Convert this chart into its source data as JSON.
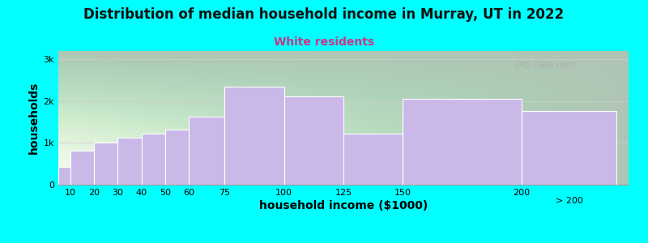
{
  "title": "Distribution of median household income in Murray, UT in 2022",
  "subtitle": "White residents",
  "xlabel": "household income ($1000)",
  "ylabel": "households",
  "bar_color": "#c9b8e8",
  "bar_edge_color": "#ffffff",
  "background_color": "#00FFFF",
  "categories": [
    "10",
    "20",
    "30",
    "40",
    "50",
    "60",
    "75",
    "100",
    "125",
    "150",
    "200",
    "> 200"
  ],
  "left_edges": [
    5,
    10,
    20,
    30,
    40,
    50,
    60,
    75,
    100,
    125,
    150,
    200
  ],
  "right_edges": [
    10,
    20,
    30,
    40,
    50,
    60,
    75,
    100,
    125,
    150,
    200,
    240
  ],
  "values": [
    430,
    820,
    1000,
    1120,
    1230,
    1310,
    1620,
    2350,
    2120,
    1230,
    2050,
    1760
  ],
  "ylim": [
    0,
    3200
  ],
  "xlim": [
    5,
    245
  ],
  "yticks": [
    0,
    1000,
    2000,
    3000
  ],
  "ytick_labels": [
    "0",
    "1k",
    "2k",
    "3k"
  ],
  "xtick_positions": [
    10,
    20,
    30,
    40,
    50,
    60,
    75,
    100,
    125,
    150,
    200
  ],
  "xtick_labels": [
    "10",
    "20",
    "30",
    "40",
    "50",
    "60",
    "75",
    "100",
    "125",
    "150",
    "200"
  ],
  "title_fontsize": 12,
  "subtitle_fontsize": 10,
  "axis_label_fontsize": 10,
  "tick_fontsize": 8,
  "watermark": "City-Data.com"
}
